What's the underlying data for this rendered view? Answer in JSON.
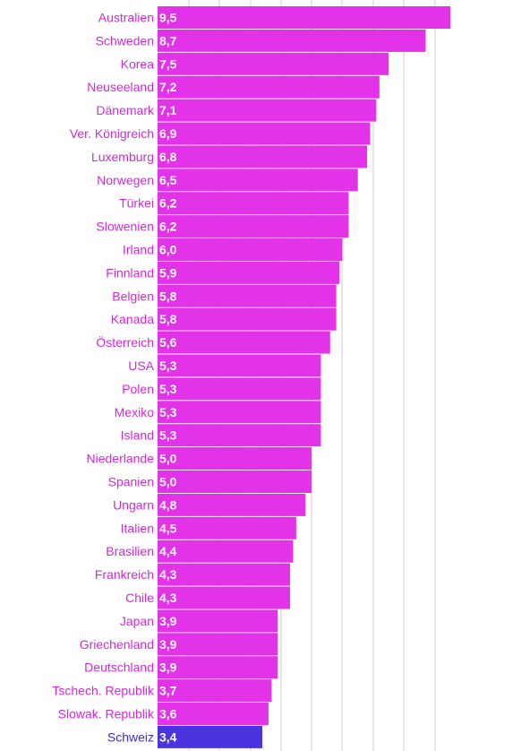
{
  "chart_data": {
    "type": "bar",
    "orientation": "horizontal",
    "title": "",
    "xlabel": "",
    "ylabel": "",
    "xlim": [
      0,
      9.5
    ],
    "grid": true,
    "legend": "none",
    "colors": {
      "bar": "#e233e9",
      "highlight_bar": "#4a34e0",
      "category_label": "#d427dc",
      "highlight_label": "#3a2bd6",
      "value_label": "#ffffff",
      "grid": "#cfcfcf"
    },
    "highlight_category": "Schweiz",
    "categories": [
      "Australien",
      "Schweden",
      "Korea",
      "Neuseeland",
      "Dänemark",
      "Ver. Königreich",
      "Luxemburg",
      "Norwegen",
      "Türkei",
      "Slowenien",
      "Irland",
      "Finnland",
      "Belgien",
      "Kanada",
      "Österreich",
      "USA",
      "Polen",
      "Mexiko",
      "Island",
      "Niederlande",
      "Spanien",
      "Ungarn",
      "Italien",
      "Brasilien",
      "Frankreich",
      "Chile",
      "Japan",
      "Griechenland",
      "Deutschland",
      "Tschech. Republik",
      "Slowak. Republik",
      "Schweiz"
    ],
    "values": [
      9.5,
      8.7,
      7.5,
      7.2,
      7.1,
      6.9,
      6.8,
      6.5,
      6.2,
      6.2,
      6.0,
      5.9,
      5.8,
      5.8,
      5.6,
      5.3,
      5.3,
      5.3,
      5.3,
      5.0,
      5.0,
      4.8,
      4.5,
      4.4,
      4.3,
      4.3,
      3.9,
      3.9,
      3.9,
      3.7,
      3.6,
      3.4
    ],
    "value_labels": [
      "9,5",
      "8,7",
      "7,5",
      "7,2",
      "7,1",
      "6,9",
      "6,8",
      "6,5",
      "6,2",
      "6,2",
      "6,0",
      "5,9",
      "5,8",
      "5,8",
      "5,6",
      "5,3",
      "5,3",
      "5,3",
      "5,3",
      "5,0",
      "5,0",
      "4,8",
      "4,5",
      "4,4",
      "4,3",
      "4,3",
      "3,9",
      "3,9",
      "3,9",
      "3,7",
      "3,6",
      "3,4"
    ]
  }
}
